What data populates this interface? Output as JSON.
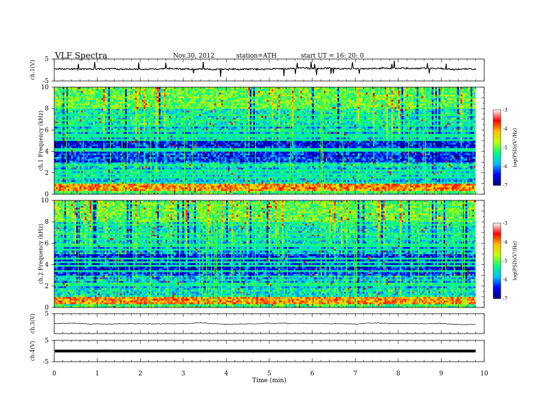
{
  "header": {
    "title": "VLF  Spectra",
    "date": "Nov.30, 2012",
    "station": "station=ATH",
    "start": "start  UT  =    16: 20: 0"
  },
  "chart_data": [
    {
      "type": "line",
      "name": "waveform-ch1",
      "ylabel": "ch.1(V)",
      "ylim": [
        -5,
        5
      ],
      "yticks": [
        "5",
        "-5"
      ],
      "xlim": [
        0,
        10
      ],
      "x_end": 9.8,
      "baseline": 0.5,
      "noise_amplitude": 0.6,
      "spike_amplitude": 3.6
    },
    {
      "type": "heatmap",
      "name": "spectrogram-ch1",
      "ylabel": "ch.1  Frequency (kHz)",
      "ylim": [
        0,
        10
      ],
      "yticks": [
        "0",
        "2",
        "4",
        "6",
        "8",
        "10"
      ],
      "xlim": [
        0,
        10
      ],
      "x_end": 9.8,
      "colorbar": {
        "label": "log(PSD)(V²/Hz)",
        "range": [
          -7,
          -3
        ],
        "ticks": [
          "-3",
          "-4",
          "-5",
          "-6",
          "-7"
        ]
      }
    },
    {
      "type": "heatmap",
      "name": "spectrogram-ch2",
      "ylabel": "ch.2  Frequency (kHz)",
      "ylim": [
        0,
        10
      ],
      "yticks": [
        "0",
        "2",
        "4",
        "6",
        "8",
        "10"
      ],
      "xlim": [
        0,
        10
      ],
      "x_end": 9.8,
      "colorbar": {
        "label": "log(PSD)(V²/Hz)",
        "range": [
          -7,
          -3
        ],
        "ticks": [
          "-3",
          "-4",
          "-5",
          "-6",
          "-7"
        ]
      }
    },
    {
      "type": "line",
      "name": "waveform-ch3",
      "ylabel": "ch.3(V)",
      "ylim": [
        -5,
        5
      ],
      "yticks": [
        "5"
      ],
      "xlim": [
        0,
        10
      ],
      "x_end": 9.8,
      "baseline": 0,
      "noise_amplitude": 0.05,
      "spike_amplitude": 0.3
    },
    {
      "type": "line",
      "name": "waveform-ch4",
      "ylabel": "ch.4(V)",
      "ylim": [
        -5,
        5
      ],
      "yticks": [
        "5",
        "-5"
      ],
      "xlim": [
        0,
        10
      ],
      "x_end": 9.8,
      "baseline": 0,
      "noise_amplitude": 0.3,
      "spike_amplitude": 0.3
    }
  ],
  "x_axis": {
    "label": "Time  (min)",
    "ticks": [
      "0",
      "1",
      "2",
      "3",
      "4",
      "5",
      "6",
      "7",
      "8",
      "9",
      "10"
    ]
  },
  "colors": {
    "colormap": [
      "#000080",
      "#0000ff",
      "#00c0ff",
      "#00ff80",
      "#c0ff00",
      "#ffc000",
      "#ff0000",
      "#ffffff"
    ]
  }
}
